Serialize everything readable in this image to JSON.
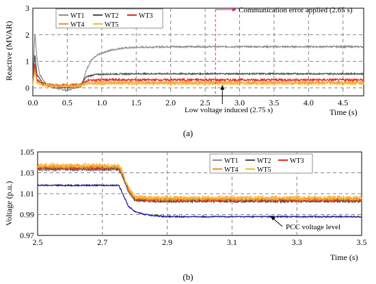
{
  "chart_data": [
    {
      "type": "line",
      "panel_label": "(a)",
      "title": "",
      "xlabel": "Time (s)",
      "ylabel": "Reactive (MVAR)",
      "xlim": [
        0,
        4.8
      ],
      "ylim": [
        -0.3,
        3
      ],
      "xticks": [
        "0.0",
        "0.5",
        "1.0",
        "1.5",
        "2.0",
        "2.5",
        "3.0",
        "3.5",
        "4.0",
        "4.5"
      ],
      "yticks": [
        "0",
        "1",
        "2",
        "3"
      ],
      "grid": true,
      "legend_position": "top-left",
      "series": [
        {
          "name": "WT1",
          "color": "#8c8c8c",
          "x": [
            0,
            0.03,
            0.06,
            0.1,
            0.2,
            0.3,
            0.4,
            0.5,
            0.6,
            0.7,
            0.74,
            0.78,
            0.85,
            0.95,
            1.1,
            1.3,
            1.6,
            2.0,
            3.0,
            4.8
          ],
          "values": [
            0.2,
            2.1,
            1.1,
            0.5,
            0.1,
            0.0,
            -0.05,
            -0.1,
            0.0,
            0.05,
            0.35,
            0.7,
            1.05,
            1.25,
            1.4,
            1.5,
            1.53,
            1.55,
            1.55,
            1.55
          ]
        },
        {
          "name": "WT2",
          "color": "#4a4a4a",
          "x": [
            0,
            0.03,
            0.06,
            0.15,
            0.3,
            0.5,
            0.7,
            0.74,
            0.78,
            0.9,
            1.1,
            1.5,
            2.0,
            4.8
          ],
          "values": [
            0.15,
            1.3,
            0.5,
            0.15,
            0.05,
            0.0,
            0.1,
            0.3,
            0.42,
            0.5,
            0.52,
            0.53,
            0.53,
            0.53
          ]
        },
        {
          "name": "WT3",
          "color": "#e8271c",
          "x": [
            0,
            0.03,
            0.06,
            0.15,
            0.3,
            0.5,
            0.7,
            0.74,
            0.8,
            1.0,
            2.0,
            4.8
          ],
          "values": [
            0.15,
            0.9,
            0.3,
            0.15,
            0.1,
            0.1,
            0.12,
            0.2,
            0.28,
            0.3,
            0.3,
            0.3
          ]
        },
        {
          "name": "WT4",
          "color": "#f3921f",
          "x": [
            0,
            0.03,
            0.06,
            0.15,
            0.3,
            0.5,
            0.7,
            0.74,
            0.8,
            1.0,
            2.0,
            4.8
          ],
          "values": [
            0.12,
            0.7,
            0.25,
            0.12,
            0.1,
            0.08,
            0.1,
            0.15,
            0.18,
            0.2,
            0.2,
            0.2
          ]
        },
        {
          "name": "WT5",
          "color": "#f7b733",
          "x": [
            0,
            0.03,
            0.06,
            0.15,
            0.3,
            0.5,
            0.7,
            0.74,
            0.8,
            1.0,
            2.0,
            4.8
          ],
          "values": [
            0.1,
            0.6,
            0.2,
            0.1,
            0.08,
            0.06,
            0.08,
            0.12,
            0.15,
            0.16,
            0.16,
            0.16
          ]
        }
      ],
      "annotations": [
        {
          "text": "Communication error applied (2.65 s)",
          "x": 2.65
        },
        {
          "text": "Low voltage induced (2.75 s)",
          "x": 2.75
        }
      ]
    },
    {
      "type": "line",
      "panel_label": "(b)",
      "title": "",
      "xlabel": "Time (s)",
      "ylabel": "Voltage (p.u.)",
      "xlim": [
        2.5,
        3.5
      ],
      "ylim": [
        0.97,
        1.05
      ],
      "xticks": [
        "2.5",
        "2.7",
        "2.9",
        "3.1",
        "3.3",
        "3.5"
      ],
      "yticks": [
        "0.97",
        "0.99",
        "1.01",
        "1.03",
        "1.05"
      ],
      "grid": true,
      "legend_position": "top-right",
      "series": [
        {
          "name": "WT1",
          "color": "#8c8c8c",
          "x": [
            2.5,
            2.75,
            2.76,
            2.78,
            2.8,
            2.85,
            3.5
          ],
          "values": [
            1.033,
            1.033,
            1.028,
            1.012,
            1.004,
            1.003,
            1.003
          ]
        },
        {
          "name": "WT2",
          "color": "#4a4a4a",
          "x": [
            2.5,
            2.75,
            2.76,
            2.78,
            2.8,
            2.85,
            3.5
          ],
          "values": [
            1.034,
            1.034,
            1.029,
            1.013,
            1.004,
            1.003,
            1.003
          ]
        },
        {
          "name": "WT3",
          "color": "#e8271c",
          "x": [
            2.5,
            2.75,
            2.76,
            2.78,
            2.8,
            2.85,
            3.5
          ],
          "values": [
            1.035,
            1.035,
            1.03,
            1.014,
            1.005,
            1.004,
            1.004
          ]
        },
        {
          "name": "WT4",
          "color": "#f3921f",
          "x": [
            2.5,
            2.75,
            2.76,
            2.78,
            2.8,
            2.85,
            3.5
          ],
          "values": [
            1.036,
            1.036,
            1.031,
            1.015,
            1.006,
            1.005,
            1.005
          ]
        },
        {
          "name": "WT5",
          "color": "#f7b733",
          "x": [
            2.5,
            2.75,
            2.76,
            2.78,
            2.8,
            2.85,
            3.5
          ],
          "values": [
            1.037,
            1.037,
            1.032,
            1.016,
            1.007,
            1.006,
            1.006
          ]
        },
        {
          "name": "",
          "color": "#1f1f99",
          "x": [
            2.5,
            2.75,
            2.76,
            2.78,
            2.8,
            2.83,
            2.86,
            2.9,
            3.5
          ],
          "values": [
            1.018,
            1.018,
            1.012,
            0.998,
            0.993,
            0.99,
            0.989,
            0.988,
            0.988
          ]
        }
      ],
      "annotations": [
        {
          "text": "PCC voltage level",
          "x": 3.27
        }
      ]
    }
  ]
}
